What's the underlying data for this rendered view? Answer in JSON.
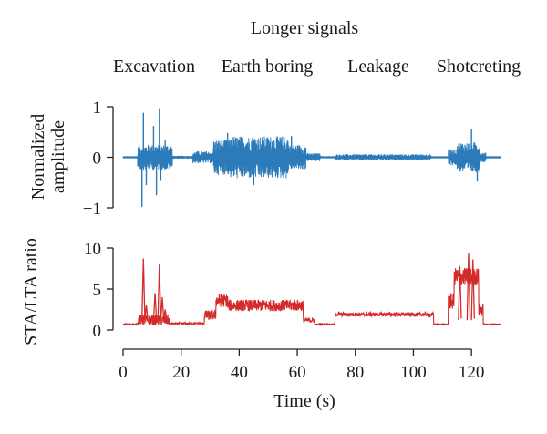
{
  "chart_data": {
    "type": "line",
    "title": "Longer signals",
    "event_labels": [
      {
        "text": "Excavation",
        "t_center": 12
      },
      {
        "text": "Earth boring",
        "t_center": 40
      },
      {
        "text": "Leakage",
        "t_center": 80
      },
      {
        "text": "Shotcreting",
        "t_center": 117
      }
    ],
    "xlabel": "Time (s)",
    "xlim": [
      0,
      130
    ],
    "xticks": [
      0,
      20,
      40,
      60,
      80,
      100,
      120
    ],
    "panels": [
      {
        "id": "amplitude",
        "ylabel_lines": [
          "Normalized",
          "amplitude"
        ],
        "ylim": [
          -1,
          1
        ],
        "yticks": [
          -1,
          0,
          1
        ],
        "ytick_labels": [
          "−1",
          "0",
          "1"
        ],
        "series": {
          "color": "#2b7bba",
          "kind": "envelope",
          "segments": [
            {
              "t0": 0,
              "t1": 5,
              "env": 0.02
            },
            {
              "t0": 5,
              "t1": 17,
              "env": 0.25
            },
            {
              "t0": 17,
              "t1": 24,
              "env": 0.03
            },
            {
              "t0": 24,
              "t1": 31,
              "env": 0.12
            },
            {
              "t0": 31,
              "t1": 37,
              "env": 0.35
            },
            {
              "t0": 37,
              "t1": 57,
              "env": 0.42
            },
            {
              "t0": 57,
              "t1": 63,
              "env": 0.25
            },
            {
              "t0": 63,
              "t1": 68,
              "env": 0.08
            },
            {
              "t0": 68,
              "t1": 73,
              "env": 0.02
            },
            {
              "t0": 73,
              "t1": 106,
              "env": 0.06
            },
            {
              "t0": 106,
              "t1": 112,
              "env": 0.02
            },
            {
              "t0": 112,
              "t1": 115,
              "env": 0.16
            },
            {
              "t0": 115,
              "t1": 123,
              "env": 0.3
            },
            {
              "t0": 123,
              "t1": 125,
              "env": 0.1
            },
            {
              "t0": 125,
              "t1": 130,
              "env": 0.02
            }
          ],
          "spikes": [
            {
              "t": 6.5,
              "v": -0.98
            },
            {
              "t": 7.0,
              "v": 0.88
            },
            {
              "t": 8.0,
              "v": -0.55
            },
            {
              "t": 10.5,
              "v": 0.62
            },
            {
              "t": 11.5,
              "v": -0.75
            },
            {
              "t": 12.5,
              "v": 0.97
            },
            {
              "t": 13.0,
              "v": -0.45
            },
            {
              "t": 14.5,
              "v": 0.35
            },
            {
              "t": 36.0,
              "v": 0.48
            },
            {
              "t": 45.0,
              "v": -0.55
            },
            {
              "t": 58.0,
              "v": 0.42
            },
            {
              "t": 120.0,
              "v": 0.55
            },
            {
              "t": 122.0,
              "v": -0.48
            }
          ]
        }
      },
      {
        "id": "sta-lta",
        "ylabel_lines": [
          "STA/LTA ratio"
        ],
        "ylim": [
          0,
          10
        ],
        "yticks": [
          0,
          5,
          10
        ],
        "ytick_labels": [
          "0",
          "5",
          "10"
        ],
        "series": {
          "color": "#d42a2a",
          "kind": "level",
          "levels": [
            {
              "t0": 0,
              "t1": 5,
              "base": 0.7,
              "noise": 0.05
            },
            {
              "t0": 5,
              "t1": 16,
              "base": 1.2,
              "noise": 0.6
            },
            {
              "t0": 16,
              "t1": 28,
              "base": 0.8,
              "noise": 0.1
            },
            {
              "t0": 28,
              "t1": 32,
              "base": 1.8,
              "noise": 0.6
            },
            {
              "t0": 32,
              "t1": 36,
              "base": 3.6,
              "noise": 0.8
            },
            {
              "t0": 36,
              "t1": 62,
              "base": 3.0,
              "noise": 0.7
            },
            {
              "t0": 62,
              "t1": 66,
              "base": 1.2,
              "noise": 0.3
            },
            {
              "t0": 66,
              "t1": 73,
              "base": 0.7,
              "noise": 0.05
            },
            {
              "t0": 73,
              "t1": 107,
              "base": 1.9,
              "noise": 0.25
            },
            {
              "t0": 107,
              "t1": 112,
              "base": 0.7,
              "noise": 0.05
            },
            {
              "t0": 112,
              "t1": 114,
              "base": 3.5,
              "noise": 1.0
            },
            {
              "t0": 114,
              "t1": 122.5,
              "base": 6.5,
              "noise": 1.1
            },
            {
              "t0": 122.5,
              "t1": 124,
              "base": 2.5,
              "noise": 0.8
            },
            {
              "t0": 124,
              "t1": 130,
              "base": 0.7,
              "noise": 0.05
            }
          ],
          "peaks": [
            {
              "t": 7.0,
              "v": 8.7
            },
            {
              "t": 8.0,
              "v": 3.0
            },
            {
              "t": 11.0,
              "v": 4.5
            },
            {
              "t": 12.5,
              "v": 8.0
            },
            {
              "t": 13.5,
              "v": 4.0
            },
            {
              "t": 14.5,
              "v": 2.5
            },
            {
              "t": 119.0,
              "v": 9.4
            },
            {
              "t": 120.5,
              "v": 8.6
            },
            {
              "t": 116.0,
              "v": 7.8
            }
          ]
        }
      }
    ],
    "grid": false,
    "legend": "none"
  }
}
